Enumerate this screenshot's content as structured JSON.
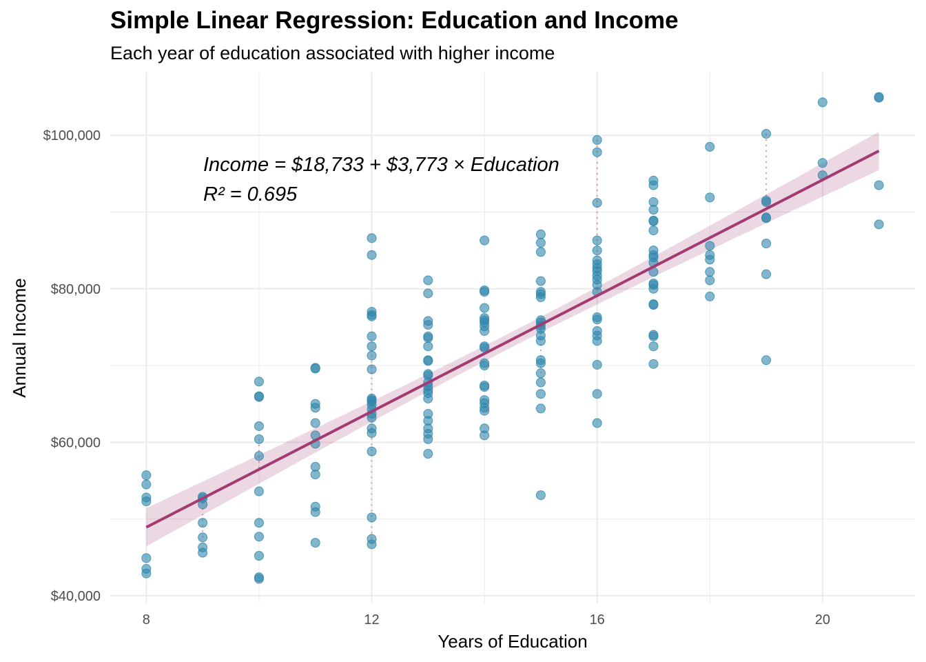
{
  "chart_data": {
    "type": "scatter",
    "title": "Simple Linear Regression: Education and Income",
    "subtitle": "Each year of education associated with higher income",
    "xlabel": "Years of Education",
    "ylabel": "Annual Income",
    "xlim": [
      7.36,
      21.64
    ],
    "ylim": [
      39000,
      108200
    ],
    "x_ticks": [
      8,
      12,
      16,
      20
    ],
    "x_tick_labels": [
      "8",
      "12",
      "16",
      "20"
    ],
    "y_ticks": [
      40000,
      60000,
      80000,
      100000
    ],
    "y_tick_labels": [
      "$40,000",
      "$60,000",
      "$80,000",
      "$100,000"
    ],
    "grid": true,
    "annotation": {
      "equation": "Income = $18,733 + $3,773 × Education",
      "r_squared": "R² = 0.695"
    },
    "regression": {
      "intercept": 18733,
      "slope": 3773,
      "x_range": [
        8,
        21
      ]
    },
    "colors": {
      "points": "#2E86AB",
      "line": "#A23B72",
      "residual": "#E07A5F",
      "grid": "#EBEBEB"
    },
    "highlighted_residuals": [
      [
        9,
        47600
      ],
      [
        10,
        60400
      ],
      [
        12,
        46700
      ],
      [
        12,
        71300
      ],
      [
        13,
        65700
      ],
      [
        15,
        69000
      ],
      [
        16,
        99400
      ],
      [
        19,
        100200
      ]
    ],
    "points": {
      "8": [
        55700,
        54500,
        52800,
        52300,
        44900,
        43500,
        42900
      ],
      "9": [
        52900,
        52700,
        51900,
        49500,
        47600,
        46300,
        45600
      ],
      "10": [
        67900,
        66000,
        65900,
        62100,
        60400,
        58200,
        53600,
        49500,
        47700,
        45200,
        42400,
        42200
      ],
      "11": [
        69700,
        69600,
        65000,
        64500,
        62500,
        60900,
        59800,
        56800,
        55800,
        51600,
        50900,
        46900
      ],
      "12": [
        86600,
        84400,
        77000,
        76600,
        76400,
        73800,
        72500,
        71300,
        69500,
        65700,
        65500,
        65300,
        64900,
        64300,
        63700,
        63200,
        61800,
        61200,
        58800,
        50200,
        47400,
        46700
      ],
      "13": [
        81100,
        79400,
        75800,
        75300,
        73800,
        73600,
        72500,
        70700,
        70600,
        68900,
        68700,
        67800,
        67300,
        66800,
        66400,
        65700,
        63700,
        62800,
        61800,
        61100,
        60400,
        58500
      ],
      "14": [
        86300,
        79800,
        79600,
        77500,
        76200,
        75900,
        75600,
        75100,
        74500,
        72500,
        72300,
        70300,
        70000,
        67400,
        67200,
        65500,
        65100,
        64500,
        64100,
        61800,
        60900
      ],
      "15": [
        87100,
        86000,
        84800,
        81000,
        79600,
        79300,
        78900,
        75900,
        75600,
        75200,
        74800,
        73900,
        73200,
        70700,
        70300,
        69000,
        67800,
        66300,
        64400,
        53100
      ],
      "16": [
        99400,
        97800,
        91200,
        86300,
        85000,
        83700,
        83200,
        82700,
        82300,
        81700,
        81200,
        80500,
        79600,
        76300,
        76000,
        74500,
        73900,
        73200,
        70100,
        66300,
        62500
      ],
      "17": [
        94100,
        93500,
        91300,
        90300,
        88900,
        88800,
        87600,
        85000,
        84400,
        84100,
        83400,
        82200,
        80700,
        80500,
        80000,
        78000,
        77900,
        74000,
        73800,
        72500,
        70200
      ],
      "18": [
        98500,
        91900,
        85600,
        84400,
        83800,
        82200,
        81100,
        79000
      ],
      "19": [
        100200,
        91500,
        91300,
        89300,
        89200,
        85900,
        81900,
        70700
      ],
      "20": [
        104300,
        96400,
        94800
      ],
      "21": [
        105000,
        104900,
        93500,
        88400
      ]
    }
  }
}
